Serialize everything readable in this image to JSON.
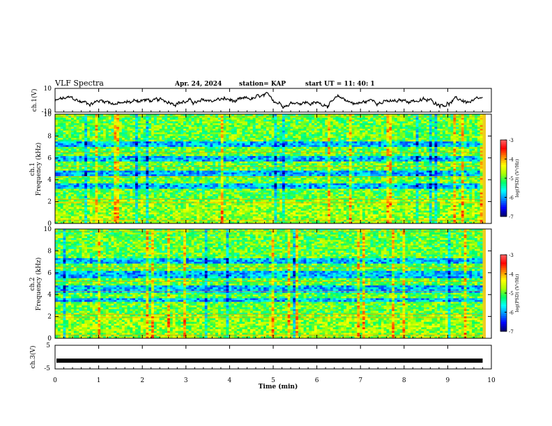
{
  "header": {
    "title": "VLF Spectra",
    "date": "Apr. 24, 2024",
    "station": "station= KAP",
    "start": "start  UT =   11: 40: 1"
  },
  "colors": {
    "spectrogram_dominant": "#33cc55",
    "low_psd": "#0044ff",
    "high_psd": "#ff2200",
    "colorbar_stops": [
      "#000066",
      "#0000ff",
      "#0088ff",
      "#00ffff",
      "#00ff66",
      "#aaff00",
      "#ffff00",
      "#ff8800",
      "#ff0000",
      "#ff6666"
    ]
  },
  "chart_data": [
    {
      "type": "line",
      "id": "ch1-waveform",
      "ylabel": "ch.1(V)",
      "ylim": [
        -10,
        10
      ],
      "yticks": [
        "10",
        "-10"
      ],
      "xlim": [
        0,
        10
      ],
      "trace": {
        "baseline_v": -1.0,
        "amplitude_v": 4.0,
        "ends_at_min": 9.8
      }
    },
    {
      "type": "heatmap",
      "id": "ch1-spectrogram",
      "ylabel": "ch.1",
      "ylabel2": "Frequency (kHz)",
      "ylim": [
        0,
        10
      ],
      "yticks": [
        "0",
        "2",
        "4",
        "6",
        "8",
        "10"
      ],
      "xlim": [
        0,
        10
      ],
      "data_ends_at_min": 9.8,
      "dominant_log_psd": -5.0,
      "low_psd_bands_khz": [
        [
          5.6,
          6.2
        ],
        [
          7.0,
          7.5
        ],
        [
          4.3,
          4.9
        ],
        [
          3.2,
          3.6
        ]
      ],
      "colorbar": {
        "label": "log(PSD) (V²/Hz)",
        "range": [
          -7,
          -3
        ],
        "ticks": [
          "-3",
          "-4",
          "-5",
          "-6",
          "-7"
        ]
      }
    },
    {
      "type": "heatmap",
      "id": "ch2-spectrogram",
      "ylabel": "ch.2",
      "ylabel2": "Frequency (kHz)",
      "ylim": [
        0,
        10
      ],
      "yticks": [
        "0",
        "2",
        "4",
        "6",
        "8",
        "10"
      ],
      "xlim": [
        0,
        10
      ],
      "data_ends_at_min": 9.8,
      "dominant_log_psd": -5.0,
      "low_psd_bands_khz": [
        [
          5.5,
          6.1
        ],
        [
          6.8,
          7.4
        ],
        [
          4.2,
          4.8
        ],
        [
          3.3,
          3.7
        ]
      ],
      "colorbar": {
        "label": "log(PSD) (V²/Hz)",
        "range": [
          -7,
          -3
        ],
        "ticks": [
          "-3",
          "-4",
          "-5",
          "-6",
          "-7"
        ]
      }
    },
    {
      "type": "line",
      "id": "ch3-waveform",
      "ylabel": "ch.3(V)",
      "ylim": [
        -5,
        5
      ],
      "yticks": [
        "5",
        "-5"
      ],
      "xlim": [
        0,
        10
      ],
      "trace": {
        "baseline_v": -1.5,
        "ends_at_min": 9.8
      }
    }
  ],
  "xaxis": {
    "label": "Time (min)",
    "ticks": [
      "0",
      "1",
      "2",
      "3",
      "4",
      "5",
      "6",
      "7",
      "8",
      "9",
      "10"
    ]
  }
}
